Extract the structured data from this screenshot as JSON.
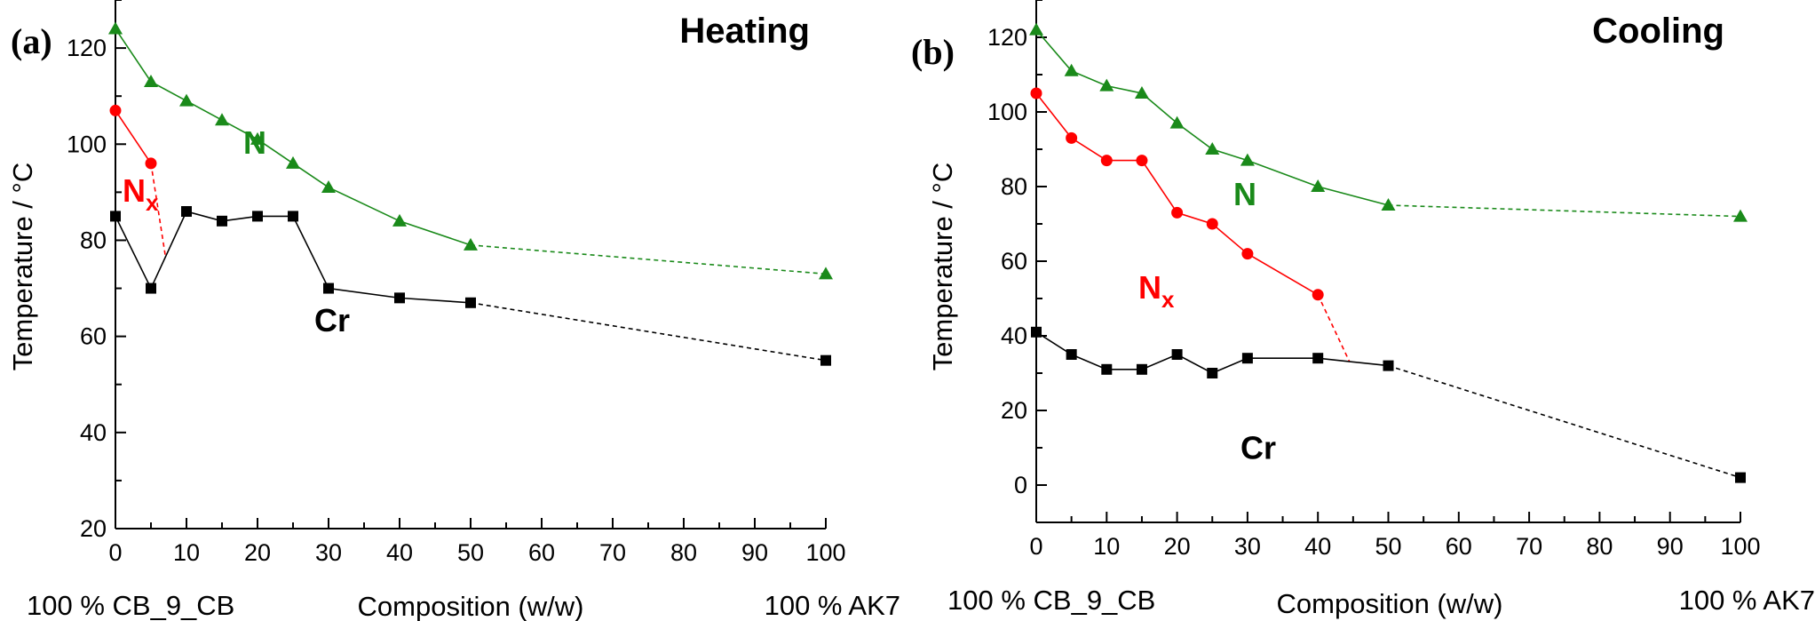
{
  "chart_data": [
    {
      "type": "line",
      "panel_label": "(a)",
      "title": "Heating",
      "xlabel": "Composition (w/w)",
      "ylabel": "Temperature / °C",
      "xlim": [
        0,
        100
      ],
      "ylim": [
        20,
        130
      ],
      "xticks": [
        0,
        10,
        20,
        30,
        40,
        50,
        60,
        70,
        80,
        90,
        100
      ],
      "yticks": [
        20,
        40,
        60,
        80,
        100,
        120
      ],
      "left_end_label": "100 % CB_9_CB",
      "right_end_label": "100 % AK7",
      "series": [
        {
          "name": "N",
          "color": "#1a8a1a",
          "marker": "triangle",
          "x": [
            0,
            5,
            10,
            15,
            20,
            25,
            30,
            40,
            50
          ],
          "y": [
            124,
            113,
            109,
            105,
            101,
            96,
            91,
            84,
            79
          ],
          "extension": {
            "x": [
              50,
              100
            ],
            "y": [
              79,
              73
            ]
          }
        },
        {
          "name": "Nx",
          "color": "#ff0000",
          "marker": "circle",
          "x": [
            0,
            5
          ],
          "y": [
            107,
            96
          ],
          "extension": {
            "x": [
              5,
              7
            ],
            "y": [
              96,
              77
            ]
          }
        },
        {
          "name": "Cr",
          "color": "#000000",
          "marker": "square",
          "x": [
            0,
            5,
            10,
            15,
            20,
            25,
            30,
            40,
            50
          ],
          "y": [
            85,
            70,
            86,
            84,
            85,
            85,
            70,
            68,
            67
          ],
          "extension": {
            "x": [
              50,
              100
            ],
            "y": [
              67,
              55
            ]
          }
        }
      ],
      "annotations": [
        {
          "text": "N",
          "color": "#1a8a1a",
          "x": 18,
          "y": 98
        },
        {
          "text": "N",
          "sub": "x",
          "color": "#ff0000",
          "x": 1,
          "y": 88
        },
        {
          "text": "Cr",
          "color": "#000000",
          "x": 28,
          "y": 61
        }
      ]
    },
    {
      "type": "line",
      "panel_label": "(b)",
      "title": "Cooling",
      "xlabel": "Composition (w/w)",
      "ylabel": "Temperature / °C",
      "xlim": [
        0,
        100
      ],
      "ylim": [
        -10,
        130
      ],
      "xticks": [
        0,
        10,
        20,
        30,
        40,
        50,
        60,
        70,
        80,
        90,
        100
      ],
      "yticks": [
        0,
        20,
        40,
        60,
        80,
        100,
        120
      ],
      "left_end_label": "100 % CB_9_CB",
      "right_end_label": "100 % AK7",
      "series": [
        {
          "name": "N",
          "color": "#1a8a1a",
          "marker": "triangle",
          "x": [
            0,
            5,
            10,
            15,
            20,
            25,
            30,
            40,
            50
          ],
          "y": [
            122,
            111,
            107,
            105,
            97,
            90,
            87,
            80,
            75
          ],
          "extension": {
            "x": [
              50,
              100
            ],
            "y": [
              75,
              72
            ]
          }
        },
        {
          "name": "Nx",
          "color": "#ff0000",
          "marker": "circle",
          "x": [
            0,
            5,
            10,
            15,
            20,
            25,
            30,
            40
          ],
          "y": [
            105,
            93,
            87,
            87,
            73,
            70,
            62,
            51
          ],
          "extension": {
            "x": [
              40,
              44.5
            ],
            "y": [
              51,
              33
            ]
          }
        },
        {
          "name": "Cr",
          "color": "#000000",
          "marker": "square",
          "x": [
            0,
            5,
            10,
            15,
            20,
            25,
            30,
            40,
            50
          ],
          "y": [
            41,
            35,
            31,
            31,
            35,
            30,
            34,
            34,
            32
          ],
          "extension": {
            "x": [
              50,
              100
            ],
            "y": [
              32,
              2
            ]
          }
        }
      ],
      "annotations": [
        {
          "text": "N",
          "color": "#1a8a1a",
          "x": 28,
          "y": 75
        },
        {
          "text": "N",
          "sub": "x",
          "color": "#ff0000",
          "x": 14.5,
          "y": 50
        },
        {
          "text": "Cr",
          "color": "#000000",
          "x": 29,
          "y": 7
        }
      ]
    }
  ]
}
